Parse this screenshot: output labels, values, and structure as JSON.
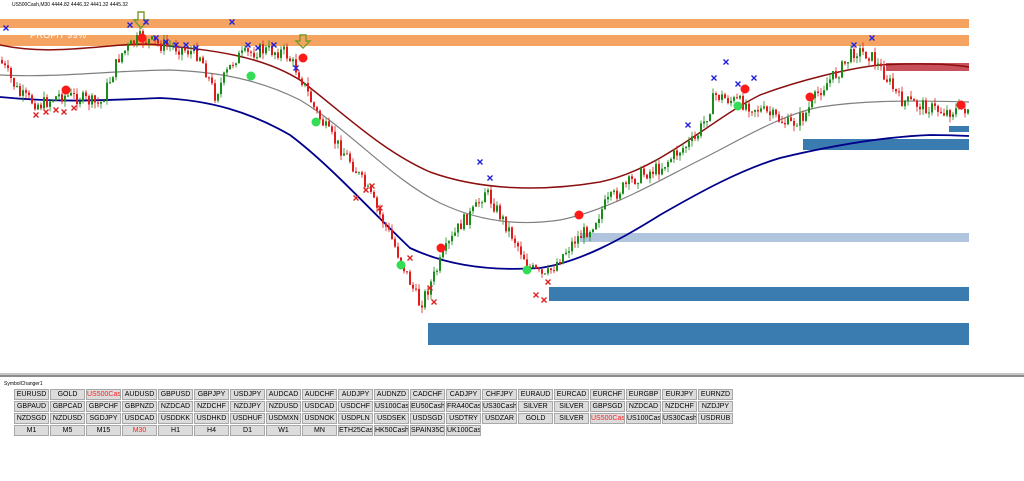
{
  "header": {
    "symbol_quote": "US500Cash,M30  4444.82 4446.32 4441.32 4445.32"
  },
  "profit_label": "PROFIT 99%",
  "panel": {
    "title": "SymbolChanger1",
    "active_color": "#ff2020",
    "rows": [
      [
        "EURUSD",
        "GOLD",
        "US500Cash",
        "AUDUSD",
        "GBPUSD",
        "GBPJPY",
        "USDJPY",
        "AUDCAD",
        "AUDCHF",
        "AUDJPY",
        "AUDNZD",
        "CADCHF",
        "CADJPY",
        "CHFJPY",
        "EURAUD",
        "EURCAD",
        "EURCHF",
        "EURGBP",
        "EURJPY",
        "EURNZD"
      ],
      [
        "GBPAUD",
        "GBPCAD",
        "GBPCHF",
        "GBPNZD",
        "NZDCAD",
        "NZDCHF",
        "NZDJPY",
        "NZDUSD",
        "USDCAD",
        "USDCHF",
        "US100Cash",
        "EU50Cash",
        "FRA40Cash",
        "US30Cash",
        "SILVER",
        "SILVER",
        "GBPSGD",
        "NZDCAD",
        "NZDCHF",
        "NZDJPY"
      ],
      [
        "NZDSGD",
        "NZDUSD",
        "SGDJPY",
        "USDCAD",
        "USDDKK",
        "USDHKD",
        "USDHUF",
        "USDMXN",
        "USDNOK",
        "USDPLN",
        "USDSEK",
        "USDSGD",
        "USDTRY",
        "USDZAR",
        "GOLD",
        "SILVER",
        "US500Cash",
        "US100Cash",
        "US30Cash",
        "USDRUB"
      ],
      [
        "M1",
        "M5",
        "M15",
        "M30",
        "H1",
        "H4",
        "D1",
        "W1",
        "MN",
        "ETH25Cash",
        "HK50Cash",
        "SPAIN35Cash",
        "UK100Cash"
      ]
    ],
    "active": [
      [
        0,
        2
      ],
      [
        2,
        16
      ],
      [
        3,
        3
      ]
    ]
  },
  "chart_data": {
    "type": "line",
    "symbol": "US500Cash",
    "timeframe": "M30",
    "grid": false,
    "colors": {
      "candle_up": "#1a8c1a",
      "candle_down": "#e01b1b",
      "upper_band": "#8b0f0f",
      "middle_band": "#808080",
      "lower_band": "#00008b",
      "zone_orange": "#f4a460",
      "zone_blue": "#3a7bb0",
      "zone_lightblue": "#b0c4de",
      "zone_red": "#c8505a",
      "signal_red": "#ff1a1a",
      "signal_green": "#33dd55",
      "cross_blue": "#2020dd",
      "cross_red": "#dd2020",
      "arrow_olive": "#7a9a2a"
    },
    "series": [
      {
        "values": [
          4445,
          4448,
          4452,
          4450,
          4446,
          4432,
          4408,
          4388,
          4378,
          4382,
          4398,
          4412,
          4422,
          4432,
          4442,
          4448,
          4452,
          4450,
          4446
        ]
      },
      {
        "values": [
          4438,
          4439,
          4440,
          4438,
          4434,
          4422,
          4402,
          4384,
          4372,
          4372,
          4382,
          4394,
          4405,
          4414,
          4422,
          4428,
          4433,
          4437,
          4436
        ]
      },
      {
        "values": [
          4430,
          4429,
          4426,
          4420,
          4412,
          4400,
          4384,
          4368,
          4360,
          4360,
          4362,
          4372,
          4384,
          4394,
          4402,
          4410,
          4416,
          4420,
          4420
        ]
      }
    ]
  }
}
